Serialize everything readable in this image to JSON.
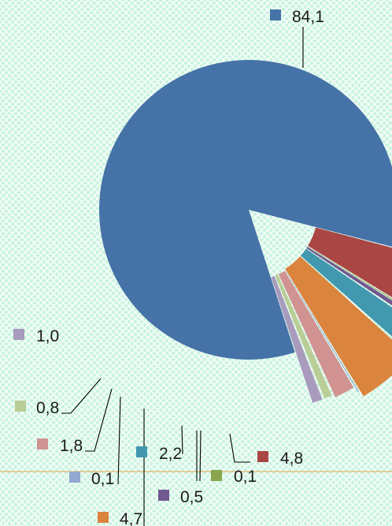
{
  "chart_data": {
    "type": "pie",
    "style": "exploded",
    "background": "light mint green with diagonal cross-hatch pattern",
    "reference_line": {
      "orientation": "horizontal",
      "color": "#E2A14A"
    },
    "slices": [
      {
        "value": 84.1,
        "label": "84,1",
        "color": "#4572A7"
      },
      {
        "value": 4.8,
        "label": "4,8",
        "color": "#AA4643"
      },
      {
        "value": 0.1,
        "label": "0,1",
        "color": "#89A54E"
      },
      {
        "value": 0.5,
        "label": "0,5",
        "color": "#71588F"
      },
      {
        "value": 2.2,
        "label": "2,2",
        "color": "#4198AF"
      },
      {
        "value": 4.7,
        "label": "4,7",
        "color": "#DB843D"
      },
      {
        "value": 0.1,
        "label": "0,1",
        "color": "#93A9CF"
      },
      {
        "value": 1.8,
        "label": "1,8",
        "color": "#D19392"
      },
      {
        "value": 0.8,
        "label": "0,8",
        "color": "#B9CD96"
      },
      {
        "value": 1.0,
        "label": "1,0",
        "color": "#A99BBD"
      }
    ]
  }
}
